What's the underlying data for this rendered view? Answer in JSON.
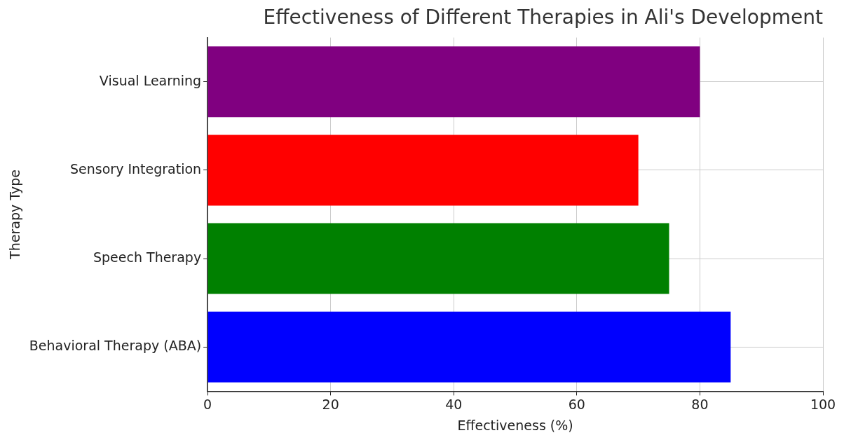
{
  "chart_data": {
    "type": "bar",
    "orientation": "horizontal",
    "title": "Effectiveness of Different Therapies in Ali's Development",
    "xlabel": "Effectiveness (%)",
    "ylabel": "Therapy Type",
    "categories": [
      "Visual Learning",
      "Sensory Integration",
      "Speech Therapy",
      "Behavioral Therapy (ABA)"
    ],
    "values": [
      80,
      70,
      75,
      85
    ],
    "colors": [
      "#800080",
      "#ff0000",
      "#008000",
      "#0000ff"
    ],
    "xlim": [
      0,
      100
    ],
    "xticks": [
      0,
      20,
      40,
      60,
      80,
      100
    ],
    "grid": true,
    "legend": false
  }
}
